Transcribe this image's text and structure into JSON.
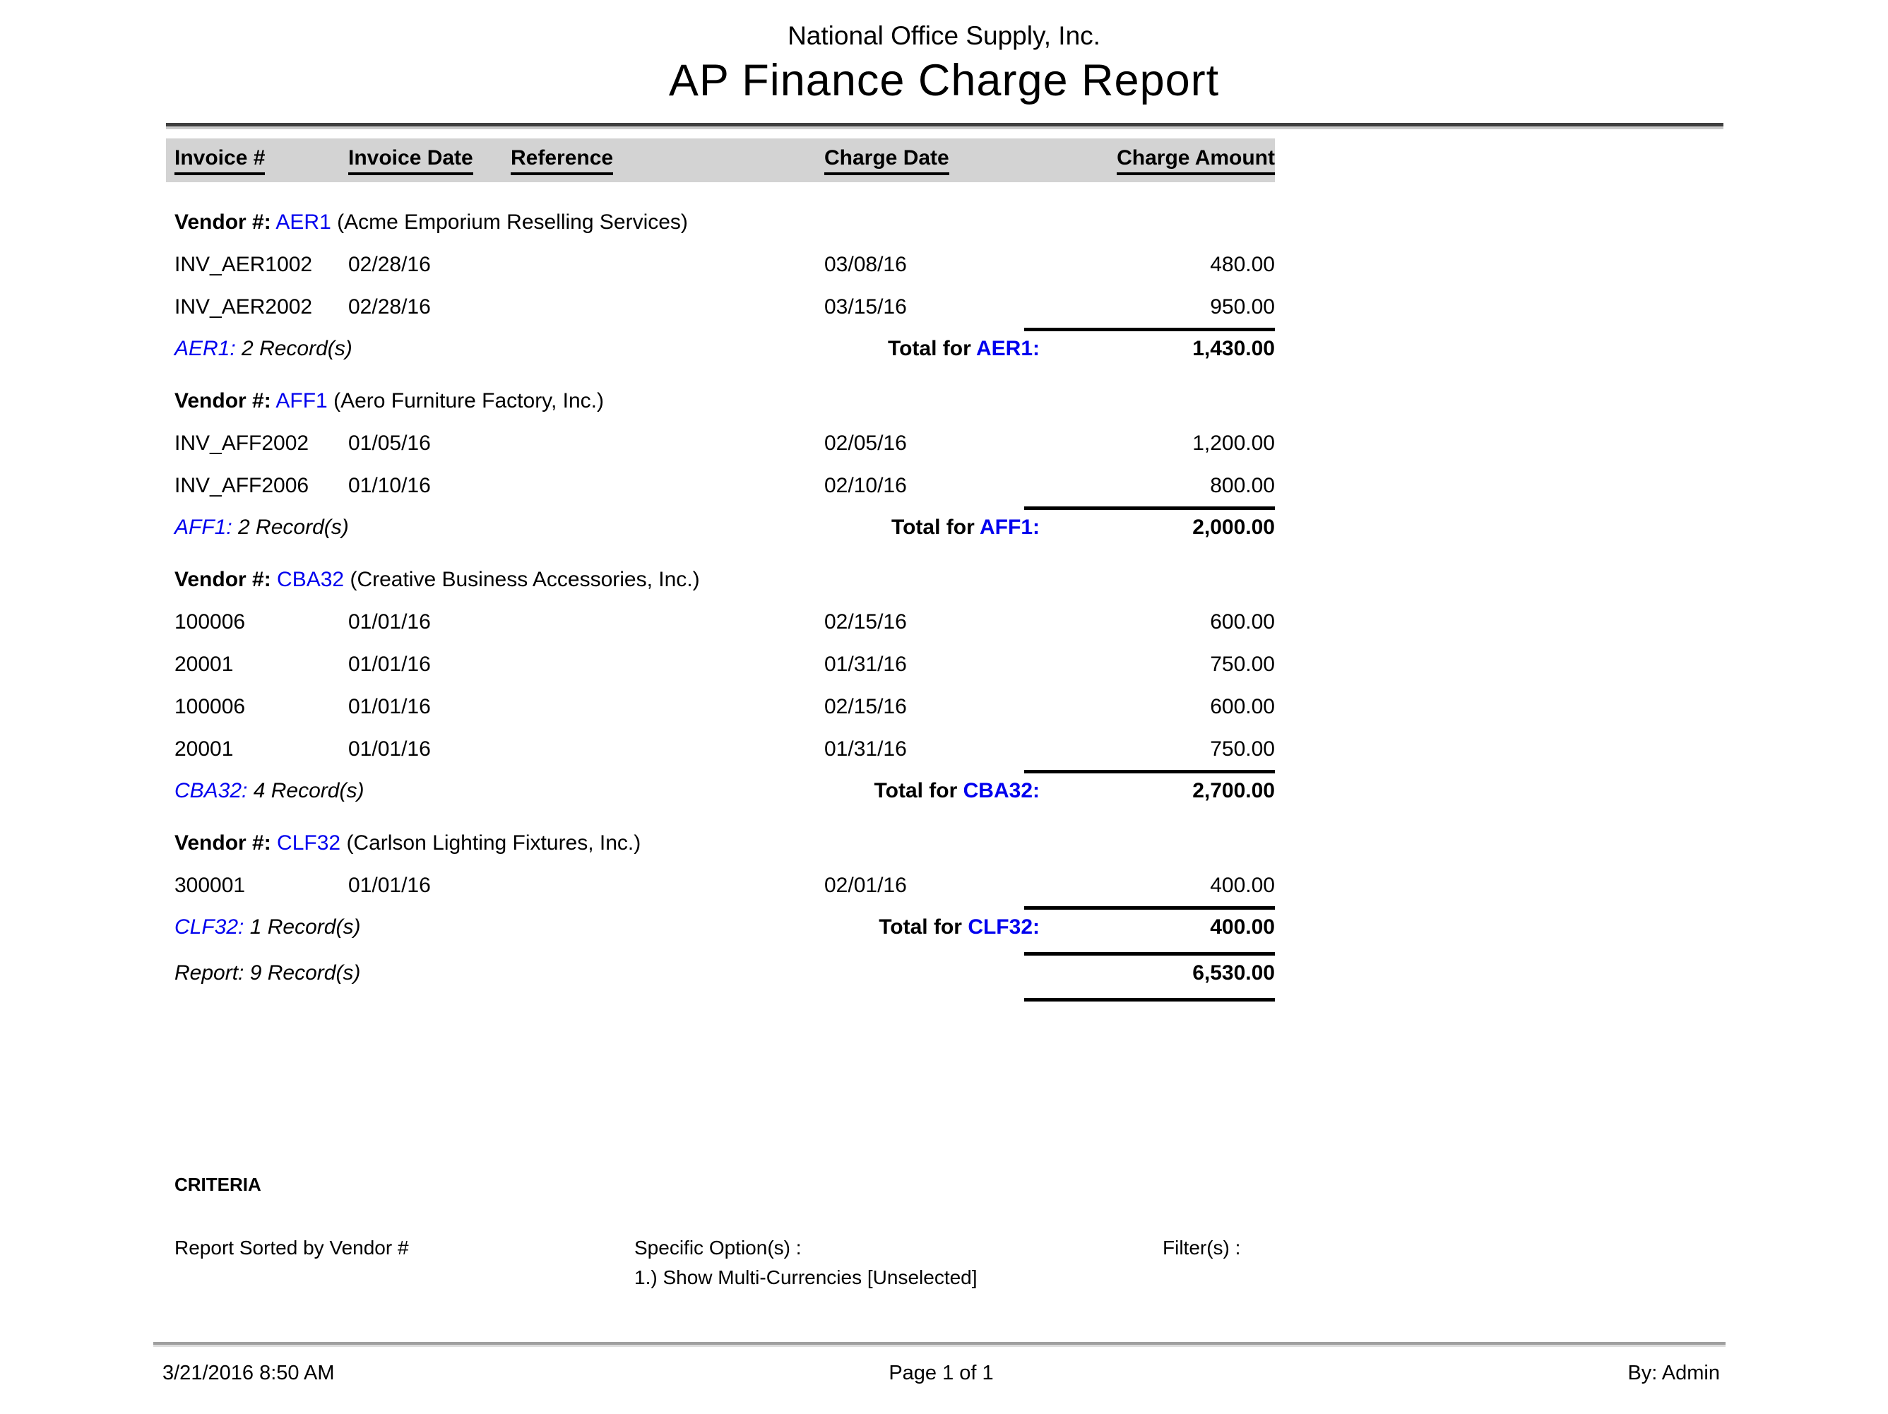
{
  "page": {
    "company": "National Office Supply, Inc.",
    "title": "AP Finance Charge Report"
  },
  "labels": {
    "vendor_prefix": "Vendor #:",
    "total_prefix": "Total for"
  },
  "columns": {
    "invoice": "Invoice #",
    "invoice_date": "Invoice Date",
    "reference": "Reference",
    "charge_date": "Charge Date",
    "charge_amount": "Charge Amount"
  },
  "vendors": [
    {
      "code": "AER1",
      "name": "(Acme Emporium Reselling Services)",
      "records_code": "AER1:",
      "records_text": " 2 Record(s)",
      "total_code": "AER1:",
      "total_amount": "1,430.00",
      "rows": [
        {
          "invoice": "INV_AER1002",
          "invoice_date": "02/28/16",
          "reference": "",
          "charge_date": "03/08/16",
          "amount": "480.00"
        },
        {
          "invoice": "INV_AER2002",
          "invoice_date": "02/28/16",
          "reference": "",
          "charge_date": "03/15/16",
          "amount": "950.00"
        }
      ]
    },
    {
      "code": "AFF1",
      "name": "(Aero Furniture Factory, Inc.)",
      "records_code": "AFF1:",
      "records_text": " 2 Record(s)",
      "total_code": "AFF1:",
      "total_amount": "2,000.00",
      "rows": [
        {
          "invoice": "INV_AFF2002",
          "invoice_date": "01/05/16",
          "reference": "",
          "charge_date": "02/05/16",
          "amount": "1,200.00"
        },
        {
          "invoice": "INV_AFF2006",
          "invoice_date": "01/10/16",
          "reference": "",
          "charge_date": "02/10/16",
          "amount": "800.00"
        }
      ]
    },
    {
      "code": "CBA32",
      "name": "(Creative Business Accessories, Inc.)",
      "records_code": "CBA32:",
      "records_text": " 4 Record(s)",
      "total_code": "CBA32:",
      "total_amount": "2,700.00",
      "rows": [
        {
          "invoice": "100006",
          "invoice_date": "01/01/16",
          "reference": "",
          "charge_date": "02/15/16",
          "amount": "600.00"
        },
        {
          "invoice": "20001",
          "invoice_date": "01/01/16",
          "reference": "",
          "charge_date": "01/31/16",
          "amount": "750.00"
        },
        {
          "invoice": "100006",
          "invoice_date": "01/01/16",
          "reference": "",
          "charge_date": "02/15/16",
          "amount": "600.00"
        },
        {
          "invoice": "20001",
          "invoice_date": "01/01/16",
          "reference": "",
          "charge_date": "01/31/16",
          "amount": "750.00"
        }
      ]
    },
    {
      "code": "CLF32",
      "name": "(Carlson Lighting Fixtures, Inc.)",
      "records_code": "CLF32:",
      "records_text": " 1 Record(s)",
      "total_code": "CLF32:",
      "total_amount": "400.00",
      "rows": [
        {
          "invoice": "300001",
          "invoice_date": "01/01/16",
          "reference": "",
          "charge_date": "02/01/16",
          "amount": "400.00"
        }
      ]
    }
  ],
  "summary": {
    "records": "Report: 9 Record(s)",
    "total": "6,530.00"
  },
  "criteria": {
    "heading": "CRITERIA",
    "sorted_by": "Report Sorted by Vendor #",
    "options_label": "Specific Option(s) :",
    "option_1": "1.) Show Multi-Currencies [Unselected]",
    "filters_label": "Filter(s) :"
  },
  "footer": {
    "generated": "3/21/2016 8:50 AM",
    "page": "Page 1 of 1",
    "by": "By: Admin"
  },
  "colors": {
    "link_blue": "#0000ee",
    "header_bar": "#d3d3d3"
  }
}
